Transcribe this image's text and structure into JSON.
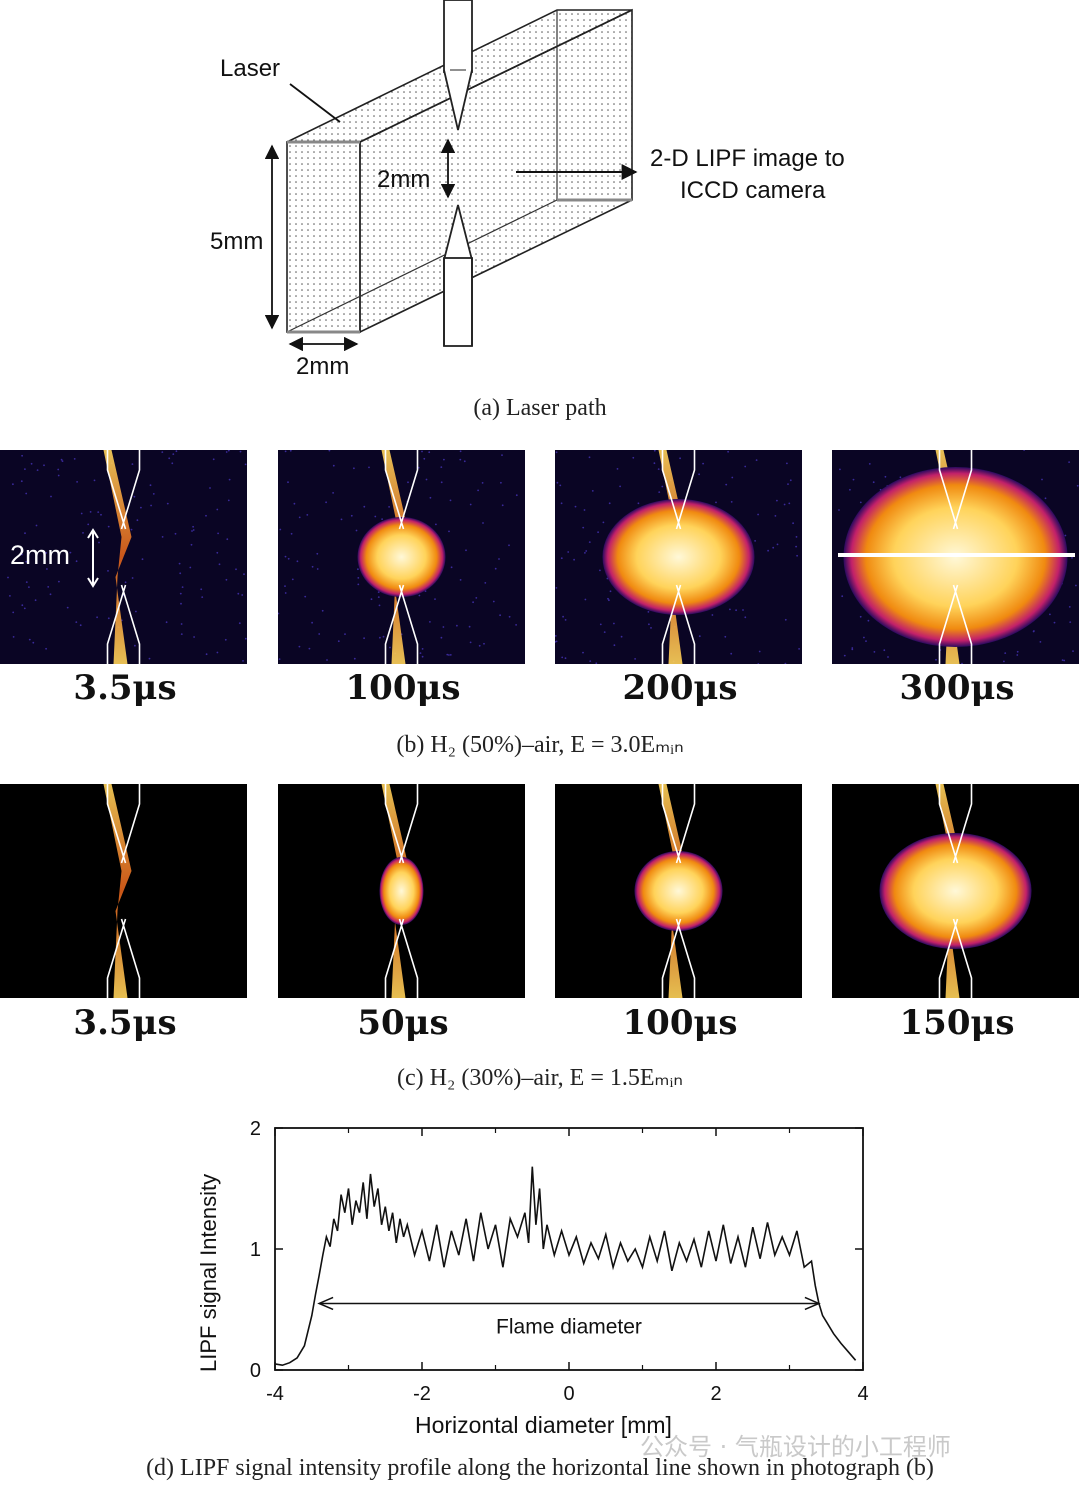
{
  "panel_a": {
    "labels": {
      "laser": "Laser",
      "gap": "2mm",
      "height": "5mm",
      "width": "2mm",
      "output_line1": "2-D LIPF image to",
      "output_line2": "ICCD camera"
    },
    "caption": "(a) Laser path"
  },
  "panel_b": {
    "scale_label": "2mm",
    "frames": [
      {
        "time": "3.5μs",
        "phase": "spark"
      },
      {
        "time": "100μs",
        "phase": "small"
      },
      {
        "time": "200μs",
        "phase": "medium"
      },
      {
        "time": "300μs",
        "phase": "large"
      }
    ],
    "caption": "(b) H₂ (50%)–air, E = 3.0Eₘᵢₙ"
  },
  "panel_c": {
    "frames": [
      {
        "time": "3.5μs",
        "phase": "spark"
      },
      {
        "time": "50μs",
        "phase": "tiny"
      },
      {
        "time": "100μs",
        "phase": "small"
      },
      {
        "time": "150μs",
        "phase": "medium"
      }
    ],
    "caption": "(c) H₂ (30%)–air, E = 1.5Eₘᵢₙ"
  },
  "chart_data": {
    "type": "line",
    "xlabel": "Horizontal diameter [mm]",
    "ylabel": "LIPF signal Intensity",
    "xlim": [
      -4,
      4
    ],
    "ylim": [
      0,
      2
    ],
    "xticks": [
      -4,
      -2,
      0,
      2,
      4
    ],
    "yticks": [
      0,
      1,
      2
    ],
    "annotation": "Flame diameter",
    "annotation_range": [
      -3.4,
      3.4
    ],
    "series": [
      {
        "x": [
          -4.0,
          -3.9,
          -3.8,
          -3.7,
          -3.6,
          -3.5,
          -3.45,
          -3.4,
          -3.35,
          -3.3,
          -3.25,
          -3.2,
          -3.15,
          -3.1,
          -3.05,
          -3.0,
          -2.95,
          -2.9,
          -2.85,
          -2.8,
          -2.75,
          -2.7,
          -2.65,
          -2.6,
          -2.55,
          -2.5,
          -2.45,
          -2.4,
          -2.35,
          -2.3,
          -2.25,
          -2.2,
          -2.1,
          -2.0,
          -1.9,
          -1.8,
          -1.7,
          -1.6,
          -1.5,
          -1.4,
          -1.3,
          -1.2,
          -1.1,
          -1.0,
          -0.9,
          -0.8,
          -0.7,
          -0.6,
          -0.55,
          -0.5,
          -0.45,
          -0.4,
          -0.35,
          -0.3,
          -0.2,
          -0.1,
          0.0,
          0.1,
          0.2,
          0.3,
          0.4,
          0.5,
          0.6,
          0.7,
          0.8,
          0.9,
          1.0,
          1.1,
          1.2,
          1.3,
          1.4,
          1.5,
          1.6,
          1.7,
          1.8,
          1.9,
          2.0,
          2.1,
          2.2,
          2.3,
          2.4,
          2.5,
          2.6,
          2.7,
          2.8,
          2.9,
          3.0,
          3.1,
          3.2,
          3.3,
          3.35,
          3.4,
          3.45,
          3.5,
          3.6,
          3.7,
          3.8,
          3.9
        ],
        "y": [
          0.05,
          0.04,
          0.06,
          0.1,
          0.2,
          0.45,
          0.62,
          0.78,
          0.95,
          1.1,
          1.02,
          1.25,
          1.15,
          1.45,
          1.3,
          1.5,
          1.2,
          1.4,
          1.3,
          1.55,
          1.25,
          1.62,
          1.35,
          1.5,
          1.2,
          1.35,
          1.15,
          1.3,
          1.05,
          1.25,
          1.1,
          1.2,
          0.95,
          1.15,
          0.9,
          1.2,
          0.85,
          1.15,
          0.95,
          1.25,
          0.9,
          1.3,
          1.0,
          1.2,
          0.85,
          1.25,
          1.1,
          1.3,
          1.05,
          1.68,
          1.2,
          1.5,
          1.0,
          1.2,
          0.95,
          1.15,
          0.95,
          1.1,
          0.88,
          1.05,
          0.92,
          1.12,
          0.85,
          1.05,
          0.9,
          1.0,
          0.85,
          1.1,
          0.9,
          1.15,
          0.82,
          1.05,
          0.9,
          1.08,
          0.85,
          1.15,
          0.9,
          1.2,
          0.88,
          1.1,
          0.85,
          1.18,
          0.92,
          1.22,
          0.95,
          1.1,
          0.95,
          1.15,
          0.85,
          0.9,
          0.7,
          0.55,
          0.45,
          0.4,
          0.3,
          0.22,
          0.15,
          0.08
        ]
      }
    ],
    "caption": "(d) LIPF signal intensity profile along the horizontal line shown in photograph (b)"
  },
  "watermark": "公众号 · 气瓶设计的小工程师"
}
